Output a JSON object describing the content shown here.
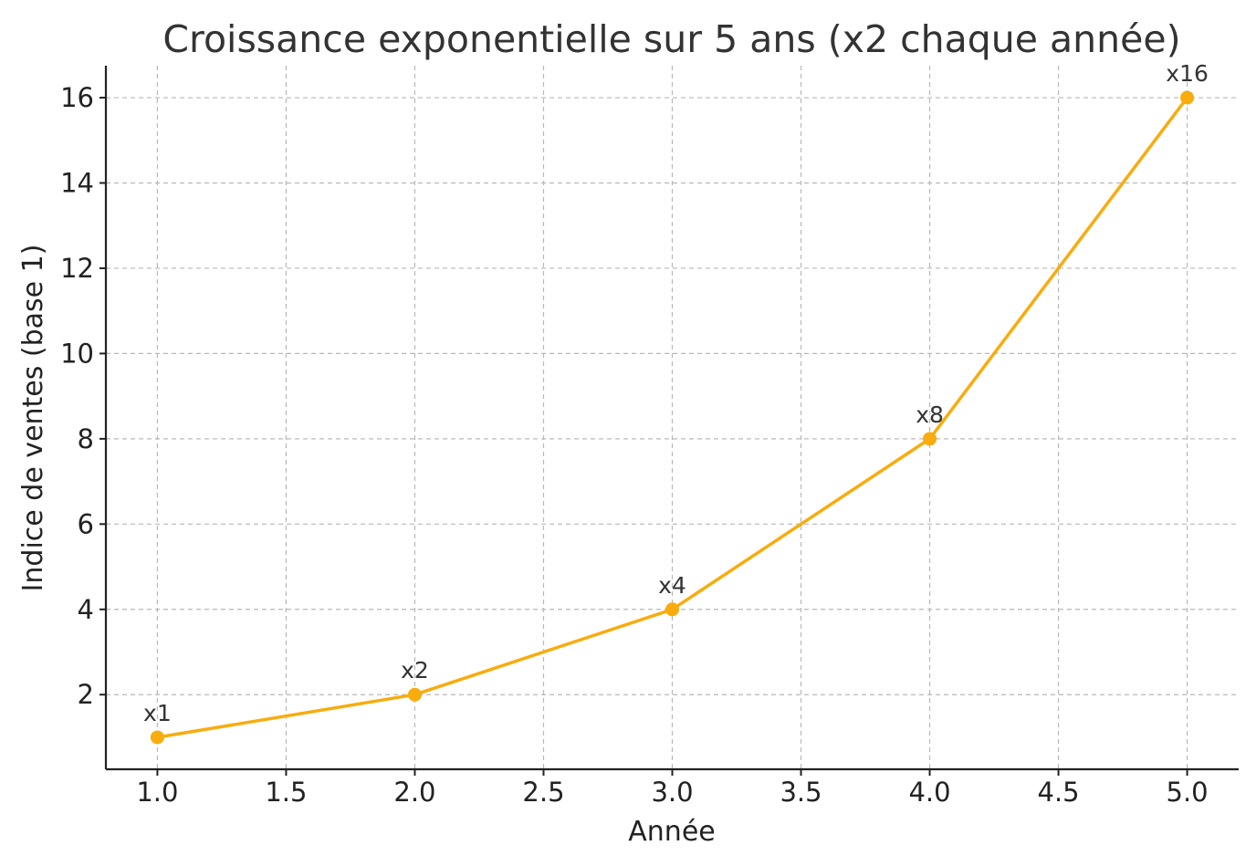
{
  "chart_data": {
    "type": "line",
    "title": "Croissance exponentielle sur 5 ans (x2 chaque année)",
    "xlabel": "Année",
    "ylabel": "Indice de ventes (base 1)",
    "xlim": [
      0.8,
      5.2
    ],
    "ylim": [
      0.25,
      16.75
    ],
    "x_ticks": [
      1.0,
      1.5,
      2.0,
      2.5,
      3.0,
      3.5,
      4.0,
      4.5,
      5.0
    ],
    "x_tick_labels": [
      "1.0",
      "1.5",
      "2.0",
      "2.5",
      "3.0",
      "3.5",
      "4.0",
      "4.5",
      "5.0"
    ],
    "y_ticks": [
      2,
      4,
      6,
      8,
      10,
      12,
      14,
      16
    ],
    "y_tick_labels": [
      "2",
      "4",
      "6",
      "8",
      "10",
      "12",
      "14",
      "16"
    ],
    "grid": true,
    "series": [
      {
        "x": [
          1,
          2,
          3,
          4,
          5
        ],
        "values": [
          1,
          2,
          4,
          8,
          16
        ],
        "color": "#F8AC0E",
        "marker": "circle"
      }
    ],
    "annotations": [
      "x1",
      "x2",
      "x4",
      "x8",
      "x16"
    ]
  }
}
